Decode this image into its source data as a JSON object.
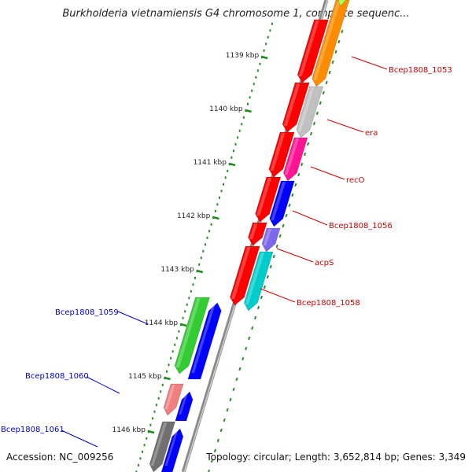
{
  "title": "Burkholderia vietnamiensis G4 chromosome 1, complete sequenc...",
  "footer": {
    "accession": "Accession: NC_009256",
    "summary": "Topology: circular; Length: 3,652,814 bp; Genes: 3,349"
  },
  "colors": {
    "backbone_outer": "#8a8a8a",
    "backbone_inner": "#cfcfcf",
    "tick_green": "#1a8a1a",
    "label_red": "#cc0000",
    "label_blue": "#0000cc",
    "dot_green": "#2e8b2e"
  },
  "ticks": [
    {
      "label": "1139 kbp"
    },
    {
      "label": "1140 kbp"
    },
    {
      "label": "1141 kbp"
    },
    {
      "label": "1142 kbp"
    },
    {
      "label": "1143 kbp"
    },
    {
      "label": "1144 kbp"
    },
    {
      "label": "1145 kbp"
    },
    {
      "label": "1146 kbp"
    }
  ],
  "genes": [
    {
      "name": "Bcep1808_1053",
      "color": "#ff8c00",
      "labelColor": "red"
    },
    {
      "name": "era",
      "color": "#c0c0c0",
      "labelColor": "red"
    },
    {
      "name": "recO",
      "color": "#ff1493",
      "labelColor": "red"
    },
    {
      "name": "Bcep1808_1056",
      "color": "#0000ff",
      "labelColor": "red"
    },
    {
      "name": "acpS",
      "color": "#7b68ee",
      "labelColor": "red"
    },
    {
      "name": "Bcep1808_1058",
      "color": "#00cccc",
      "labelColor": "red"
    },
    {
      "name": "Bcep1808_1059",
      "color": "#33cc33",
      "labelColor": "blue"
    },
    {
      "name": "Bcep1808_1060",
      "color": "#f08080",
      "labelColor": "blue"
    },
    {
      "name": "Bcep1808_1061",
      "color": "#707070",
      "labelColor": "blue"
    }
  ]
}
